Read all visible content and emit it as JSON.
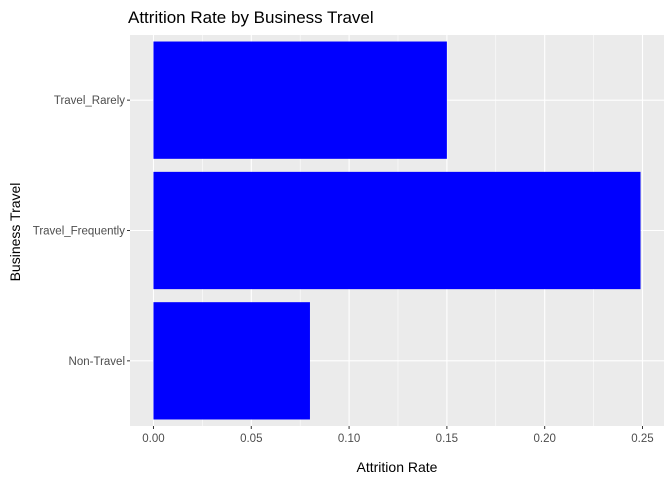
{
  "chart_data": {
    "type": "bar",
    "orientation": "horizontal",
    "title": "Attrition Rate by Business Travel",
    "xlabel": "Attrition Rate",
    "ylabel": "Business Travel",
    "categories": [
      "Non-Travel",
      "Travel_Frequently",
      "Travel_Rarely"
    ],
    "values": [
      0.08,
      0.249,
      0.15
    ],
    "xlim": [
      -0.012,
      0.261
    ],
    "xticks": [
      0.0,
      0.05,
      0.1,
      0.15,
      0.2,
      0.25
    ],
    "xtick_labels": [
      "0.00",
      "0.05",
      "0.10",
      "0.15",
      "0.20",
      "0.25"
    ],
    "bar_color": "#0000FF",
    "panel_background": "#EBEBEB",
    "grid_color": "#FFFFFF",
    "grid": true,
    "legend": "none"
  }
}
